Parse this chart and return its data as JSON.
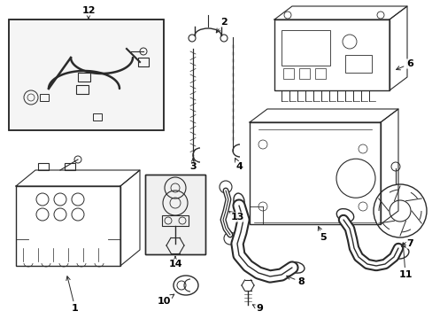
{
  "background_color": "#ffffff",
  "line_color": "#2a2a2a",
  "label_color": "#000000",
  "fig_width": 4.89,
  "fig_height": 3.6,
  "dpi": 100,
  "label_fontsize": 8.0
}
